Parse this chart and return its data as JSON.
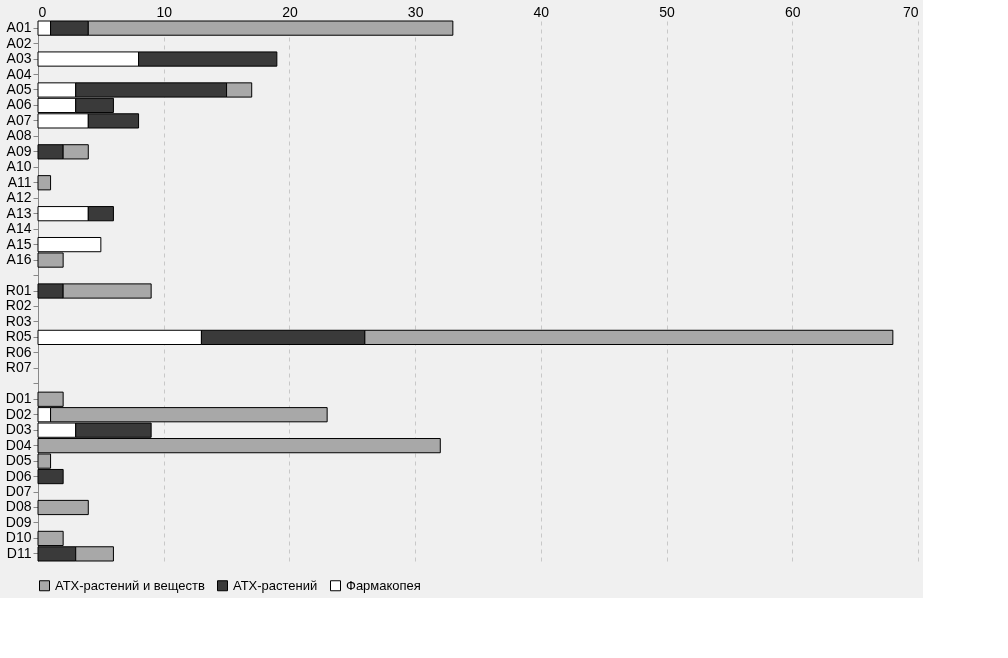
{
  "chart_data": {
    "type": "bar",
    "orientation": "horizontal",
    "stacked": true,
    "categories": [
      "A01",
      "A02",
      "A03",
      "A04",
      "A05",
      "A06",
      "A07",
      "A08",
      "A09",
      "A10",
      "A11",
      "A12",
      "A13",
      "A14",
      "A15",
      "A16",
      null,
      "R01",
      "R02",
      "R03",
      "R05",
      "R06",
      "R07",
      null,
      "D01",
      "D02",
      "D03",
      "D04",
      "D05",
      "D06",
      "D07",
      "D08",
      "D09",
      "D10",
      "D11"
    ],
    "series": [
      {
        "name": "Фармакопея",
        "color": "#ffffff",
        "values": [
          1,
          null,
          8,
          null,
          3,
          3,
          4,
          null,
          null,
          null,
          null,
          null,
          4,
          null,
          5,
          null,
          null,
          null,
          null,
          null,
          13,
          null,
          null,
          null,
          null,
          1,
          3,
          null,
          null,
          null,
          null,
          null,
          null,
          null,
          null
        ]
      },
      {
        "name": "АТХ-растений",
        "color": "#3a3a3a",
        "values": [
          3,
          null,
          11,
          null,
          12,
          3,
          4,
          null,
          2,
          null,
          null,
          null,
          2,
          null,
          null,
          null,
          null,
          2,
          null,
          null,
          13,
          null,
          null,
          null,
          null,
          null,
          6,
          null,
          null,
          2,
          null,
          null,
          null,
          null,
          3
        ]
      },
      {
        "name": "АТХ-растений и веществ",
        "color": "#a8a8a8",
        "values": [
          29,
          null,
          null,
          null,
          2,
          null,
          null,
          null,
          2,
          null,
          1,
          null,
          null,
          null,
          null,
          2,
          null,
          7,
          null,
          null,
          42,
          null,
          null,
          null,
          2,
          22,
          null,
          32,
          1,
          null,
          null,
          4,
          null,
          2,
          3
        ]
      }
    ],
    "xlim": [
      0,
      70
    ],
    "xticks": [
      0,
      10,
      20,
      30,
      40,
      50,
      60,
      70
    ],
    "grid": "x",
    "legend": "bottom"
  }
}
